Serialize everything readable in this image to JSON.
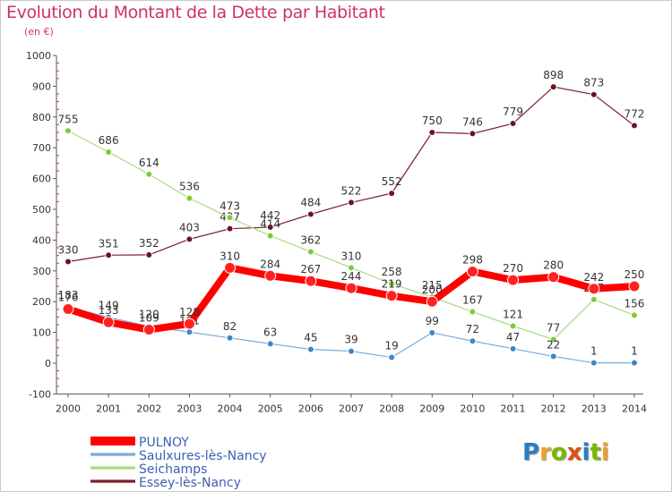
{
  "title": "Evolution du Montant de la Dette par Habitant",
  "unit": "(en €)",
  "logo": "Proxiti",
  "colors": {
    "title": "#cc3366",
    "axis": "#444444",
    "grid": "#cc3366"
  },
  "chart_data": {
    "type": "line",
    "title": "Evolution du Montant de la Dette par Habitant",
    "ylabel": "(en €)",
    "xlabel": "",
    "x": [
      "2000",
      "2001",
      "2002",
      "2003",
      "2004",
      "2005",
      "2006",
      "2007",
      "2008",
      "2009",
      "2010",
      "2011",
      "2012",
      "2013",
      "2014"
    ],
    "yticks": [
      "-100",
      "0",
      "100",
      "200",
      "300",
      "400",
      "500",
      "600",
      "700",
      "800",
      "900",
      "1000"
    ],
    "ylim": [
      -100,
      1000
    ],
    "grid": false,
    "legend_position": "bottom-left",
    "series": [
      {
        "name": "Essey-lès-Nancy",
        "color": "#7a1f2b",
        "dot": "#6e1320",
        "width": 1.2,
        "radius": 3.5,
        "values": [
          330,
          351,
          352,
          403,
          437,
          442,
          484,
          522,
          552,
          750,
          746,
          779,
          898,
          873,
          772
        ]
      },
      {
        "name": "Seichamps",
        "color": "#a8dc7a",
        "dot": "#7bcc3c",
        "width": 1.2,
        "radius": 3.5,
        "values": [
          755,
          686,
          614,
          536,
          473,
          414,
          362,
          310,
          258,
          215,
          167,
          121,
          77,
          207,
          156
        ]
      },
      {
        "name": "Saulxures-lès-Nancy",
        "color": "#7aaad8",
        "dot": "#3f86c7",
        "width": 1.2,
        "radius": 3.5,
        "values": [
          183,
          149,
          120,
          101,
          82,
          63,
          45,
          39,
          19,
          99,
          72,
          47,
          22,
          1,
          1
        ]
      },
      {
        "name": "PULNOY",
        "color": "#ff0000",
        "dot": "#ff2222",
        "width": 8,
        "radius": 6,
        "values": [
          176,
          133,
          109,
          128,
          310,
          284,
          267,
          244,
          219,
          200,
          298,
          270,
          280,
          242,
          250
        ]
      }
    ],
    "legend": [
      "PULNOY",
      "Saulxures-lès-Nancy",
      "Seichamps",
      "Essey-lès-Nancy"
    ]
  }
}
